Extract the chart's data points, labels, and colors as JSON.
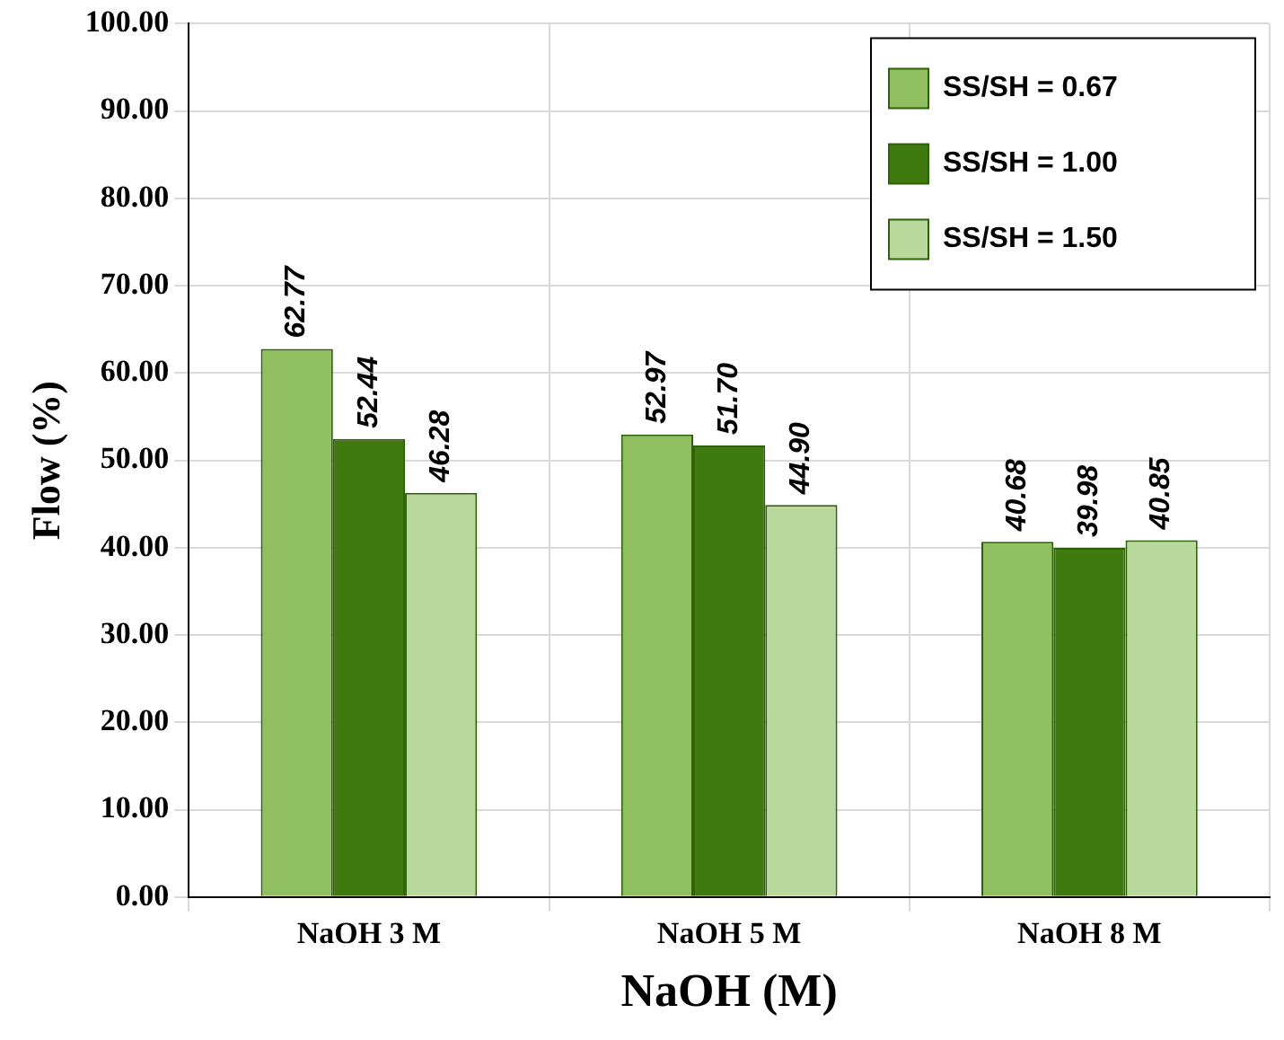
{
  "chart_data": {
    "type": "bar",
    "xlabel": "NaOH (M)",
    "ylabel": "Flow (%)",
    "categories": [
      "NaOH 3 M",
      "NaOH 5 M",
      "NaOH 8 M"
    ],
    "series": [
      {
        "name": "SS/SH = 0.67",
        "color": "#8fbf5f",
        "values": [
          62.77,
          52.97,
          40.68
        ],
        "value_labels": [
          "62.77",
          "52.97",
          "40.68"
        ]
      },
      {
        "name": "SS/SH = 1.00",
        "color": "#3f7a10",
        "values": [
          52.44,
          51.7,
          39.98
        ],
        "value_labels": [
          "52.44",
          "51.70",
          "39.98"
        ]
      },
      {
        "name": "SS/SH = 1.50",
        "color": "#b9d89c",
        "values": [
          46.28,
          44.9,
          40.85
        ],
        "value_labels": [
          "46.28",
          "44.90",
          "40.85"
        ]
      }
    ],
    "ylim": [
      0,
      100
    ],
    "yticks": [
      {
        "value": 0,
        "label": "0.00"
      },
      {
        "value": 10,
        "label": "10.00"
      },
      {
        "value": 20,
        "label": "20.00"
      },
      {
        "value": 30,
        "label": "30.00"
      },
      {
        "value": 40,
        "label": "40.00"
      },
      {
        "value": 50,
        "label": "50.00"
      },
      {
        "value": 60,
        "label": "60.00"
      },
      {
        "value": 70,
        "label": "70.00"
      },
      {
        "value": 80,
        "label": "80.00"
      },
      {
        "value": 90,
        "label": "90.00"
      },
      {
        "value": 100,
        "label": "100.00"
      }
    ],
    "grid": true,
    "legend": "top right"
  }
}
